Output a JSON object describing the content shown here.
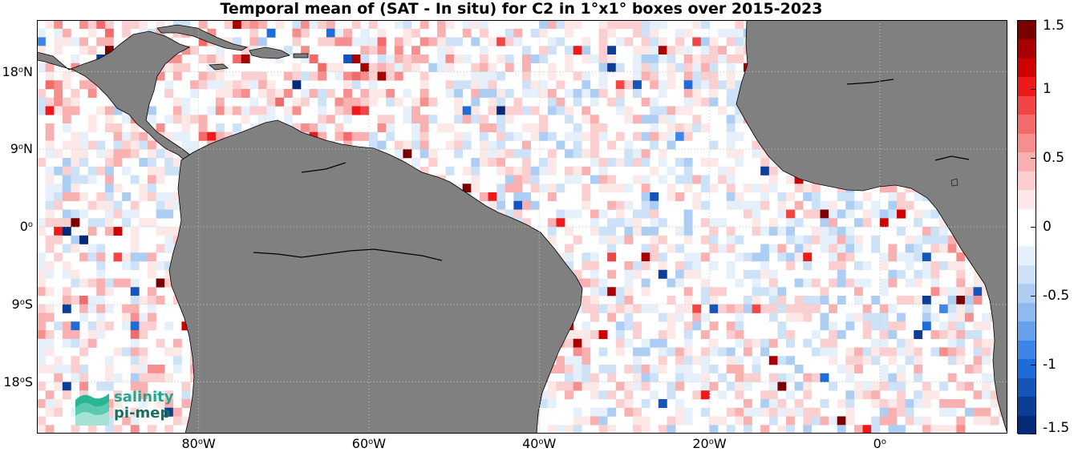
{
  "title": "Temporal mean of (SAT - In situ) for C2 in 1°x1° boxes over 2015-2023",
  "axes": {
    "lon_min": -99,
    "lon_max": 15,
    "lat_min": -24,
    "lat_max": 24,
    "lon_ticks": [
      {
        "value": -80,
        "num": "80",
        "hemi": "W"
      },
      {
        "value": -60,
        "num": "60",
        "hemi": "W"
      },
      {
        "value": -40,
        "num": "40",
        "hemi": "W"
      },
      {
        "value": -20,
        "num": "20",
        "hemi": "W"
      },
      {
        "value": 0,
        "num": "0",
        "hemi": ""
      }
    ],
    "lat_ticks": [
      {
        "value": 18,
        "num": "18",
        "hemi": "N"
      },
      {
        "value": 9,
        "num": "9",
        "hemi": "N"
      },
      {
        "value": 0,
        "num": "0",
        "hemi": ""
      },
      {
        "value": -9,
        "num": "9",
        "hemi": "S"
      },
      {
        "value": -18,
        "num": "18",
        "hemi": "S"
      }
    ],
    "grid": true
  },
  "colorbar": {
    "min": -1.5,
    "max": 1.5,
    "ticks": [
      {
        "value": 1.5,
        "label": "1.5"
      },
      {
        "value": 1,
        "label": "1"
      },
      {
        "value": 0.5,
        "label": "0.5"
      },
      {
        "value": 0,
        "label": "0"
      },
      {
        "value": -0.5,
        "label": "-0.5"
      },
      {
        "value": -1,
        "label": "-1"
      },
      {
        "value": -1.5,
        "label": "-1.5"
      }
    ],
    "colors_high_to_low": [
      "#7a0000",
      "#a80000",
      "#d00000",
      "#ee1a1a",
      "#f24646",
      "#f46a6a",
      "#f78e8e",
      "#f9b0b0",
      "#fbcfcf",
      "#fde8e8",
      "#ffffff",
      "#ffffff",
      "#e6f0fb",
      "#cde1f7",
      "#aecdf2",
      "#8fbaee",
      "#66a2eb",
      "#3d86e8",
      "#1e6cd9",
      "#1554b8",
      "#0c3e97",
      "#042a78"
    ]
  },
  "colors": {
    "land": "#808080",
    "coast": "#000000",
    "grid": "#c8c8c8"
  },
  "logo": {
    "line1": "salinity",
    "line2": "pi-mep",
    "icon": "salinity-wave-icon"
  }
}
